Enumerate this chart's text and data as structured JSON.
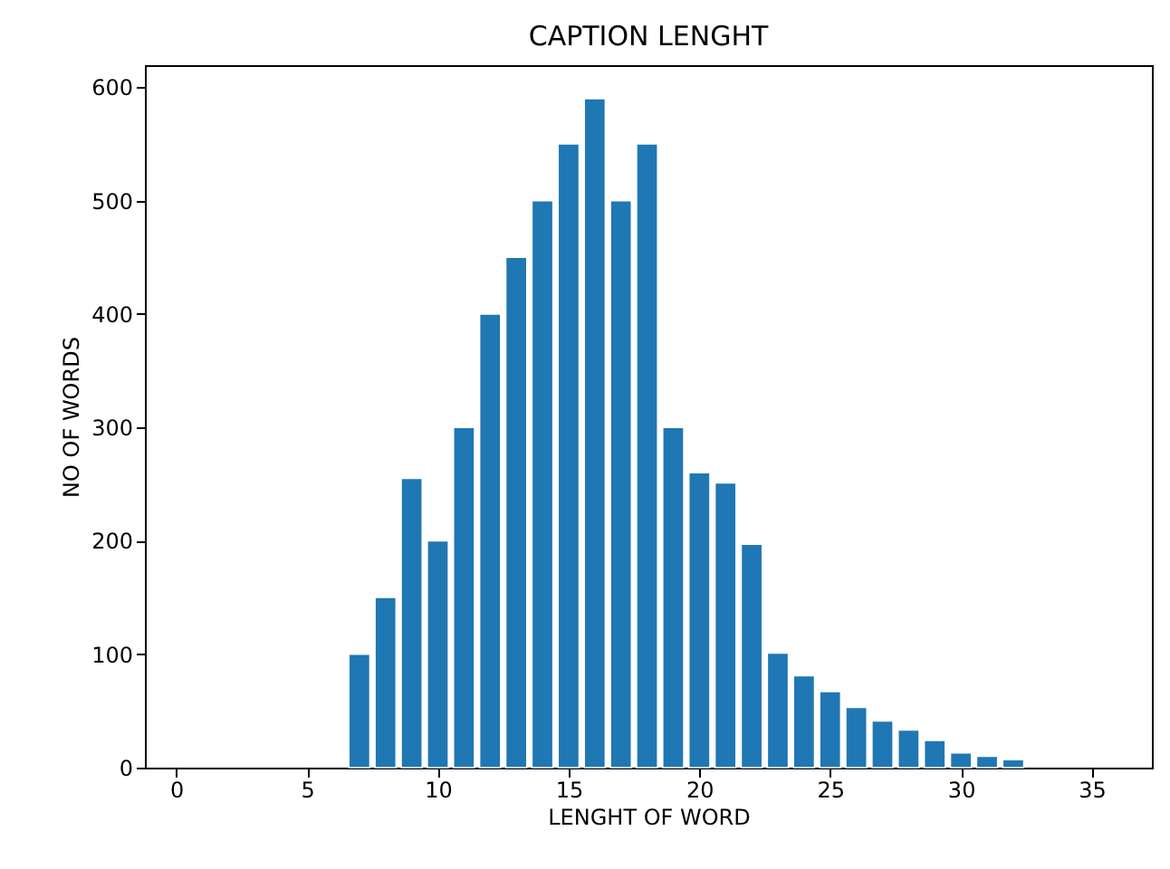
{
  "chart_data": {
    "type": "bar",
    "title": "CAPTION LENGHT",
    "xlabel": "LENGHT OF WORD",
    "ylabel": "NO OF WORDS",
    "x": [
      7,
      8,
      9,
      10,
      11,
      12,
      13,
      14,
      15,
      16,
      17,
      18,
      19,
      20,
      21,
      22,
      23,
      24,
      25,
      26,
      27,
      28,
      29,
      30,
      31,
      32
    ],
    "values": [
      100,
      150,
      255,
      200,
      300,
      400,
      450,
      500,
      550,
      590,
      500,
      550,
      300,
      260,
      251,
      197,
      101,
      81,
      67,
      53,
      41,
      33,
      24,
      13,
      10,
      7
    ],
    "color": "#1f77b4",
    "xlim": [
      -1.2,
      37.3
    ],
    "xticks": [
      0,
      5,
      10,
      15,
      20,
      25,
      30,
      35
    ],
    "ylim": [
      0,
      619.5
    ],
    "yticks": [
      0,
      100,
      200,
      300,
      400,
      500,
      600
    ],
    "grid": false
  }
}
